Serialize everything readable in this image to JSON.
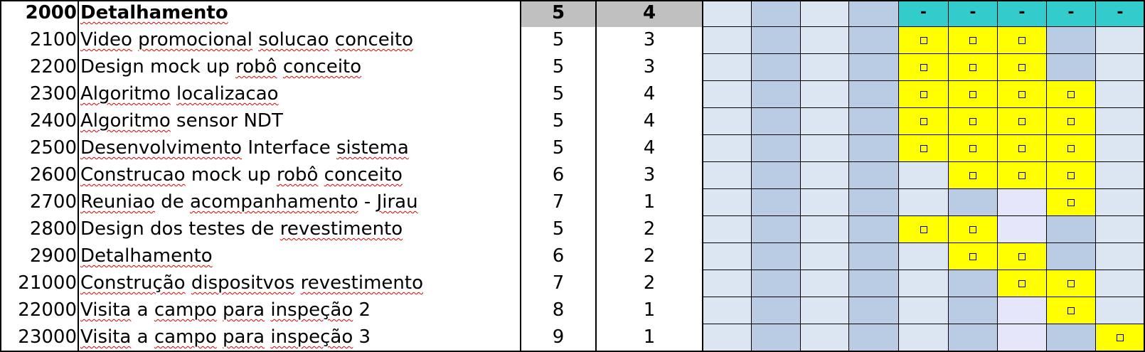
{
  "colors": {
    "light": "#dce5f2",
    "mid": "#b9cce4",
    "yellow": "#ffff00",
    "lavender": "#e6e6fa",
    "cyan": "#33cccc",
    "gray": "#c0c0c0"
  },
  "icons": {
    "cell_marker": "square-outline-icon"
  },
  "header": {
    "code": "2000",
    "task": "Detalhamento",
    "col3": "5",
    "col4": "4",
    "gantt_marks": [
      "-",
      "-",
      "-",
      "-",
      "-"
    ]
  },
  "rows": [
    {
      "code": "2100",
      "task": "Video promocional solucao conceito",
      "col3": "5",
      "col4": "3"
    },
    {
      "code": "2200",
      "task": "Design mock up robô conceito",
      "col3": "5",
      "col4": "3"
    },
    {
      "code": "2300",
      "task": "Algoritmo localizacao",
      "col3": "5",
      "col4": "4"
    },
    {
      "code": "2400",
      "task": "Algoritmo sensor NDT",
      "col3": "5",
      "col4": "4"
    },
    {
      "code": "2500",
      "task": "Desenvolvimento Interface sistema",
      "col3": "5",
      "col4": "4"
    },
    {
      "code": "2600",
      "task": "Construcao mock up robô conceito",
      "col3": "6",
      "col4": "3"
    },
    {
      "code": "2700",
      "task": "Reuniao de acompanhamento - Jirau",
      "col3": "7",
      "col4": "1"
    },
    {
      "code": "2800",
      "task": "Design dos testes de revestimento",
      "col3": "5",
      "col4": "2"
    },
    {
      "code": "2900",
      "task": "Detalhamento",
      "col3": "6",
      "col4": "2"
    },
    {
      "code": "21000",
      "task": "Construção dispositvos revestimento",
      "col3": "7",
      "col4": "2"
    },
    {
      "code": "22000",
      "task": "Visita a campo para inspeção 2",
      "col3": "8",
      "col4": "1"
    },
    {
      "code": "23000",
      "task": "Visita a campo para inspeção 3",
      "col3": "9",
      "col4": "1"
    }
  ],
  "gantt": [
    "LMLMYYYML",
    "LMLMYYYML",
    "LMLMYYYYL",
    "LMLMYYYYL",
    "LMLMYYYYL",
    "LMLMLYYYL",
    "LMLMLMVYL",
    "LMLMYYVML",
    "LMLMLYYML",
    "LMLMLMYYL",
    "LMLMLMVYL",
    "LMLMLMVMY"
  ]
}
